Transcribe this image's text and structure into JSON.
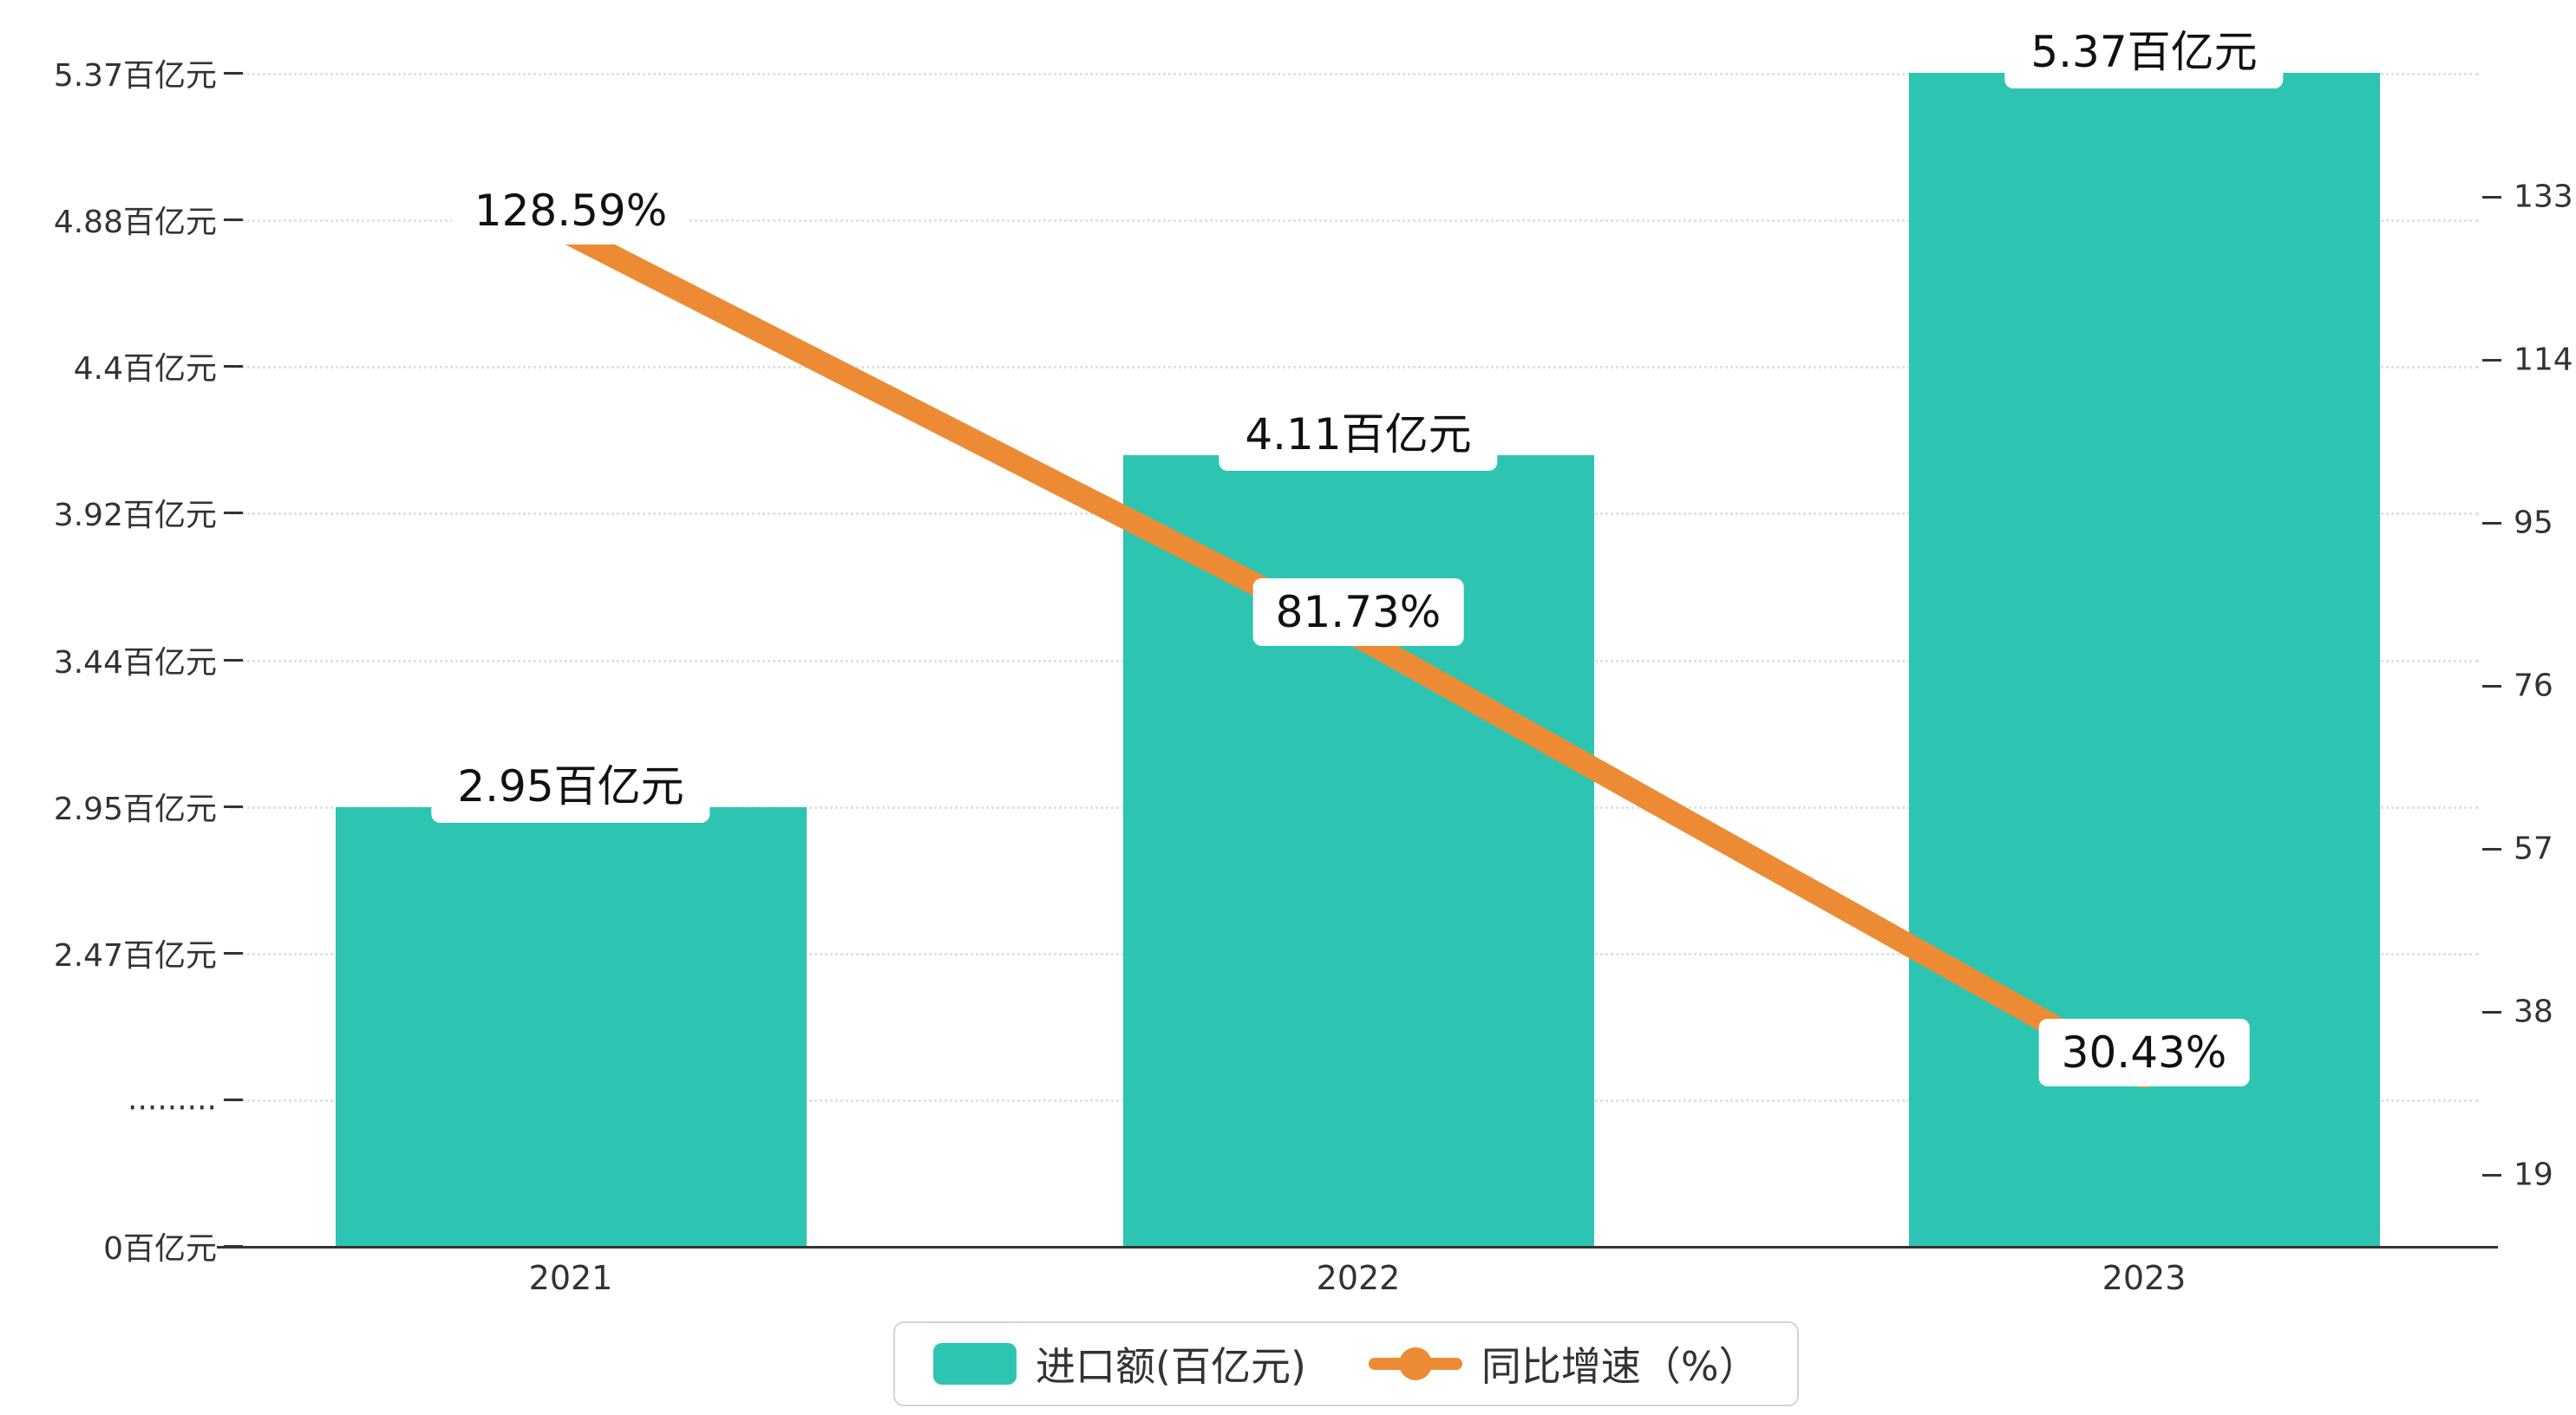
{
  "chart_data": {
    "type": "bar",
    "subtype": "bar+line-combo",
    "categories": [
      "2021",
      "2022",
      "2023"
    ],
    "series": [
      {
        "name": "进口额(百亿元)",
        "type": "bar",
        "values": [
          2.95,
          4.11,
          5.37
        ],
        "labels": [
          "2.95百亿元",
          "4.11百亿元",
          "5.37百亿元"
        ],
        "color": "#2dc5b2"
      },
      {
        "name": "同比增速（%）",
        "type": "line",
        "values": [
          128.59,
          81.73,
          30.43
        ],
        "labels": [
          "128.59%",
          "81.73%",
          "30.43%"
        ],
        "color": "#ec8b34"
      }
    ],
    "left_axis": {
      "ticks": [
        "5.37百亿元",
        "4.88百亿元",
        "4.4百亿元",
        "3.92百亿元",
        "3.44百亿元",
        "2.95百亿元",
        "2.47百亿元",
        ".........",
        "0百亿元"
      ],
      "tick_values": [
        5.37,
        4.88,
        4.4,
        3.92,
        3.44,
        2.95,
        2.47,
        null,
        0
      ],
      "note": "axis has a break between 2.47 and 0 marked with dots"
    },
    "right_axis": {
      "ticks": [
        "133",
        "114",
        "95",
        "76",
        "57",
        "38",
        "19"
      ],
      "tick_values": [
        133,
        114,
        95,
        76,
        57,
        38,
        19
      ]
    },
    "legend": [
      {
        "label": "进口额(百亿元)",
        "swatch": "bar"
      },
      {
        "label": "同比增速（%）",
        "swatch": "line"
      }
    ],
    "grid": true,
    "legend_position": "bottom",
    "colors": {
      "bar": "#2dc5b2",
      "line": "#ec8b34",
      "axis": "#333333",
      "gridline": "#e2e2e2",
      "label_bg": "#ffffff"
    }
  }
}
